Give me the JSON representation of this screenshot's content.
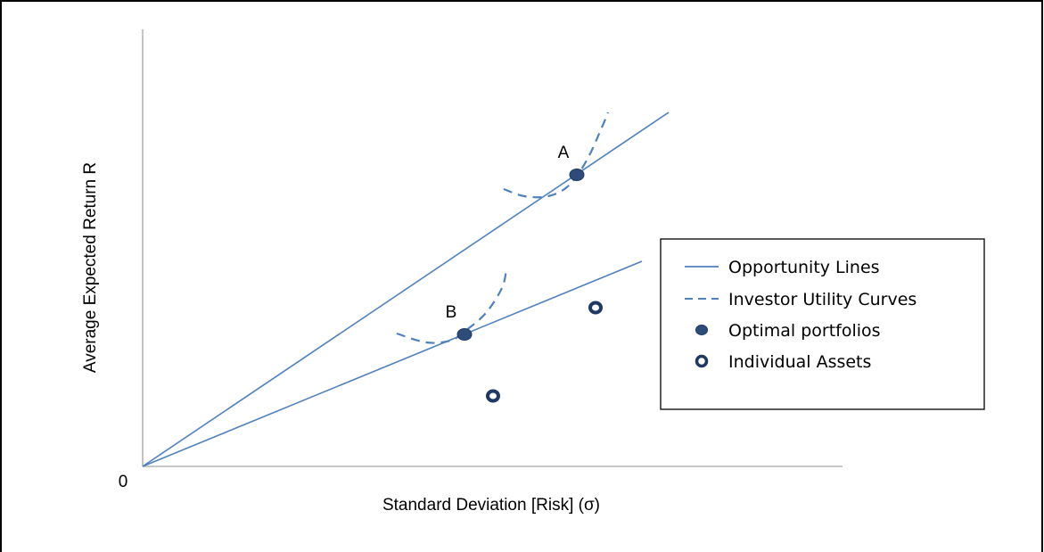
{
  "chart_data": {
    "type": "line",
    "xlabel": "Standard Deviation [Risk] (σ)",
    "ylabel": "Average Expected Return R",
    "origin_label": "0",
    "xlim": [
      0,
      785
    ],
    "ylim": [
      0,
      490
    ],
    "grid": false,
    "legend_position": "right",
    "colors": {
      "line": "#4f81bd",
      "marker": "#2e4c7a",
      "marker_edge": "#1f3864"
    },
    "series": [
      {
        "name": "Opportunity Lines",
        "kind": "solid-line",
        "lines": [
          {
            "x": [
              0,
              590
            ],
            "y": [
              0,
              397
            ]
          },
          {
            "x": [
              0,
              560
            ],
            "y": [
              0,
              230
            ]
          }
        ]
      },
      {
        "name": "Investor Utility Curves",
        "kind": "dashed-curve",
        "curves": [
          {
            "x": [
              405,
              428,
              455,
              478,
              498,
              515,
              522
            ],
            "y": [
              311,
              303,
              303,
              315,
              343,
              380,
              397
            ]
          },
          {
            "x": [
              285,
              318,
              345,
              362,
              385,
              403,
              408
            ],
            "y": [
              149,
              139,
              141,
              152,
              172,
              200,
              221
            ]
          }
        ]
      },
      {
        "name": "Optimal portfolios",
        "kind": "filled-marker",
        "points": [
          {
            "x": 487,
            "y": 327,
            "label": "A"
          },
          {
            "x": 361,
            "y": 148,
            "label": "B"
          }
        ]
      },
      {
        "name": "Individual Assets",
        "kind": "hollow-marker",
        "points": [
          {
            "x": 393,
            "y": 79
          },
          {
            "x": 508,
            "y": 178
          }
        ]
      }
    ]
  }
}
